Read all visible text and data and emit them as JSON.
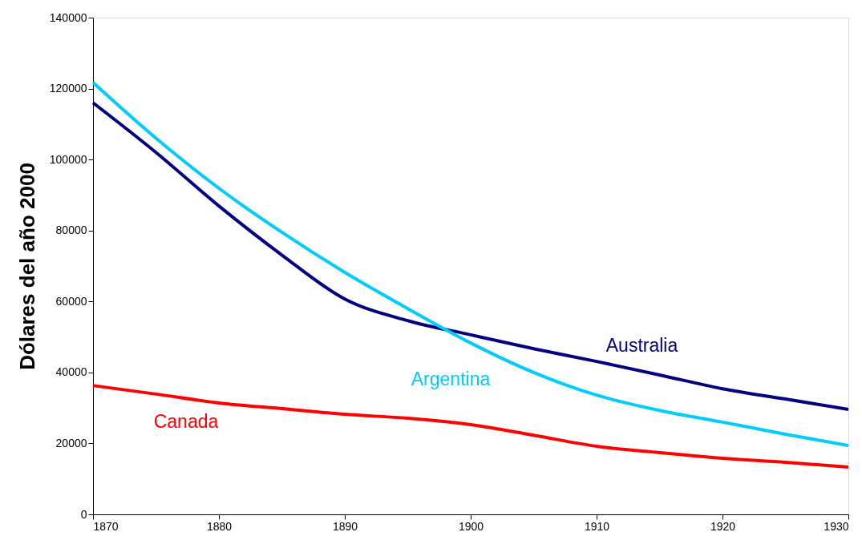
{
  "chart_data": {
    "type": "line",
    "ylabel": "Dólares del año 2000",
    "x": [
      1870,
      1875,
      1880,
      1885,
      1890,
      1895,
      1900,
      1905,
      1910,
      1915,
      1920,
      1925,
      1930
    ],
    "series": [
      {
        "name": "Australia",
        "color": "#000080",
        "values": [
          116000,
          102000,
          86900,
          73100,
          60700,
          54600,
          50600,
          46700,
          43100,
          39300,
          35400,
          32500,
          29600
        ]
      },
      {
        "name": "Argentina",
        "color": "#00ccff",
        "values": [
          121700,
          106000,
          91900,
          79500,
          68200,
          58000,
          48300,
          40000,
          33600,
          29300,
          26000,
          22600,
          19400
        ]
      },
      {
        "name": "Canada",
        "color": "#ff0000",
        "values": [
          36300,
          33900,
          31400,
          29800,
          28200,
          27100,
          25300,
          22300,
          19200,
          17400,
          15800,
          14700,
          13300
        ]
      }
    ],
    "xlim": [
      1870,
      1930
    ],
    "xticks": [
      1870,
      1880,
      1890,
      1900,
      1910,
      1920,
      1930
    ],
    "ylim": [
      0,
      140000
    ],
    "yticks": [
      0,
      20000,
      40000,
      60000,
      80000,
      100000,
      120000,
      140000
    ],
    "grid": false,
    "legend": false,
    "marker": "none",
    "line_style": "solid"
  }
}
